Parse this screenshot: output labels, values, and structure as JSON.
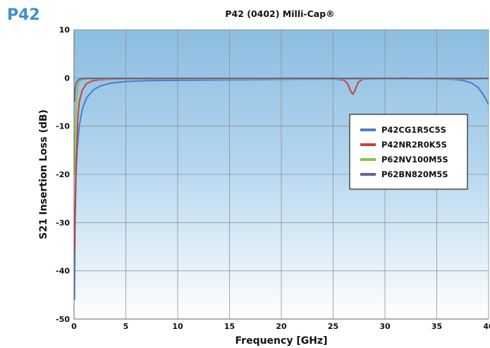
{
  "page_label": "P42",
  "chart_data": {
    "type": "line",
    "title": "P42 (0402) Milli-Cap®",
    "xlabel": "Frequency [GHz]",
    "ylabel": "S21 Insertion Loss (dB)",
    "xlim": [
      0,
      40
    ],
    "ylim": [
      -50,
      10
    ],
    "xticks": [
      0,
      5,
      10,
      15,
      20,
      25,
      30,
      35,
      40
    ],
    "yticks": [
      10,
      0,
      -10,
      -20,
      -30,
      -40,
      -50
    ],
    "grid": true,
    "legend_position": "right",
    "background": {
      "top": "#8bbde0",
      "bottom": "#ffffff"
    },
    "series": [
      {
        "name": "P42CG1R5C5S",
        "color": "#4a7fc1",
        "points": [
          [
            0.05,
            -46
          ],
          [
            0.1,
            -30
          ],
          [
            0.2,
            -20
          ],
          [
            0.3,
            -15
          ],
          [
            0.5,
            -10
          ],
          [
            0.8,
            -6.5
          ],
          [
            1.2,
            -4.2
          ],
          [
            1.8,
            -2.6
          ],
          [
            2.5,
            -1.7
          ],
          [
            3.5,
            -1.1
          ],
          [
            5,
            -0.75
          ],
          [
            7,
            -0.6
          ],
          [
            10,
            -0.5
          ],
          [
            15,
            -0.4
          ],
          [
            20,
            -0.3
          ],
          [
            25,
            -0.25
          ],
          [
            30,
            -0.2
          ],
          [
            33,
            -0.2
          ],
          [
            35,
            -0.2
          ],
          [
            36.5,
            -0.3
          ],
          [
            37.5,
            -0.5
          ],
          [
            38.3,
            -1
          ],
          [
            39,
            -2
          ],
          [
            39.5,
            -3.5
          ],
          [
            40,
            -5.5
          ]
        ]
      },
      {
        "name": "P42NR2R0K5S",
        "color": "#c8403c",
        "points": [
          [
            0.05,
            -36
          ],
          [
            0.1,
            -28
          ],
          [
            0.2,
            -18
          ],
          [
            0.35,
            -9
          ],
          [
            0.5,
            -5
          ],
          [
            0.8,
            -2.5
          ],
          [
            1.2,
            -1.2
          ],
          [
            1.8,
            -0.6
          ],
          [
            2.5,
            -0.35
          ],
          [
            4,
            -0.25
          ],
          [
            10,
            -0.2
          ],
          [
            20,
            -0.2
          ],
          [
            25,
            -0.2
          ],
          [
            26,
            -0.4
          ],
          [
            26.4,
            -1.2
          ],
          [
            26.7,
            -2.8
          ],
          [
            26.9,
            -3.4
          ],
          [
            27.1,
            -2.6
          ],
          [
            27.4,
            -1.0
          ],
          [
            27.8,
            -0.3
          ],
          [
            28.5,
            -0.2
          ],
          [
            30,
            -0.15
          ],
          [
            31.5,
            -0.1
          ],
          [
            32,
            -0.05
          ],
          [
            33,
            -0.15
          ],
          [
            35,
            -0.2
          ],
          [
            38,
            -0.25
          ],
          [
            39.2,
            -0.2
          ],
          [
            40,
            -0.1
          ]
        ]
      },
      {
        "name": "P62NV100M5S",
        "color": "#8dc04a",
        "points": [
          [
            0.05,
            -20
          ],
          [
            0.1,
            -12
          ],
          [
            0.2,
            -6
          ],
          [
            0.35,
            -2
          ],
          [
            0.5,
            -0.8
          ],
          [
            0.8,
            -0.3
          ],
          [
            1.5,
            -0.2
          ],
          [
            5,
            -0.2
          ],
          [
            15,
            -0.25
          ],
          [
            20,
            -0.2
          ],
          [
            30,
            -0.2
          ],
          [
            35,
            -0.2
          ],
          [
            40,
            -0.2
          ]
        ]
      },
      {
        "name": "P62BN820M5S",
        "color": "#6e5aa6",
        "points": [
          [
            0.05,
            -5
          ],
          [
            0.1,
            -2.5
          ],
          [
            0.2,
            -1.2
          ],
          [
            0.35,
            -0.5
          ],
          [
            0.6,
            -0.2
          ],
          [
            1,
            -0.1
          ],
          [
            5,
            -0.1
          ],
          [
            20,
            -0.1
          ],
          [
            30,
            -0.1
          ],
          [
            35,
            -0.1
          ],
          [
            40,
            -0.1
          ]
        ]
      }
    ]
  }
}
